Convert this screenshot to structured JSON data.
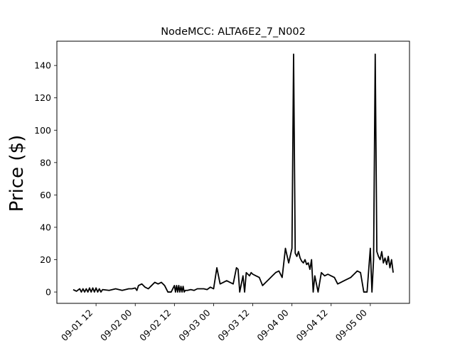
{
  "chart_data": {
    "type": "line",
    "title": "NodeMCC: ALTA6E2_7_N002",
    "xlabel": "",
    "ylabel": "Price ($)",
    "ylim": [
      -7,
      155
    ],
    "xlim": [
      "09-01 00:00",
      "09-05 12:00"
    ],
    "yticks": [
      0,
      20,
      40,
      60,
      80,
      100,
      120,
      140
    ],
    "xticks": [
      "09-01 12",
      "09-02 00",
      "09-02 12",
      "09-03 00",
      "09-03 12",
      "09-04 00",
      "09-04 12",
      "09-05 00"
    ],
    "grid": false,
    "line_color": "#000000",
    "series": [
      {
        "x": [
          "09-01 05:00",
          "09-01 06:00",
          "09-01 07:00",
          "09-01 07:30",
          "09-01 08:00",
          "09-01 08:30",
          "09-01 09:00",
          "09-01 09:30",
          "09-01 10:00",
          "09-01 10:30",
          "09-01 11:00",
          "09-01 11:30",
          "09-01 12:00",
          "09-01 12:30",
          "09-01 13:00",
          "09-01 13:30",
          "09-01 14:00",
          "09-01 16:00",
          "09-01 18:00",
          "09-01 20:00",
          "09-01 22:00",
          "09-01 23:00",
          "09-02 00:00",
          "09-02 00:30",
          "09-02 01:00",
          "09-02 02:00",
          "09-02 03:00",
          "09-02 04:00",
          "09-02 05:00",
          "09-02 06:00",
          "09-02 07:00",
          "09-02 08:00",
          "09-02 09:00",
          "09-02 10:00",
          "09-02 11:00",
          "09-02 12:00",
          "09-02 12:20",
          "09-02 12:40",
          "09-02 13:00",
          "09-02 13:20",
          "09-02 13:40",
          "09-02 14:00",
          "09-02 14:20",
          "09-02 14:40",
          "09-02 15:00",
          "09-02 15:20",
          "09-02 15:40",
          "09-02 16:00",
          "09-02 17:00",
          "09-02 18:00",
          "09-02 19:00",
          "09-02 20:00",
          "09-02 21:00",
          "09-02 22:00",
          "09-02 23:00",
          "09-03 00:00",
          "09-03 01:00",
          "09-03 02:00",
          "09-03 03:00",
          "09-03 04:00",
          "09-03 05:00",
          "09-03 06:00",
          "09-03 07:00",
          "09-03 07:30",
          "09-03 08:00",
          "09-03 09:00",
          "09-03 09:30",
          "09-03 10:00",
          "09-03 10:30",
          "09-03 11:00",
          "09-03 11:30",
          "09-03 12:00",
          "09-03 13:00",
          "09-03 14:00",
          "09-03 15:00",
          "09-03 16:00",
          "09-03 17:00",
          "09-03 18:00",
          "09-03 19:00",
          "09-03 20:00",
          "09-03 21:00",
          "09-03 22:00",
          "09-03 23:00",
          "09-04 00:00",
          "09-04 00:30",
          "09-04 01:00",
          "09-04 01:30",
          "09-04 02:00",
          "09-04 02:30",
          "09-04 03:00",
          "09-04 03:30",
          "09-04 04:00",
          "09-04 04:30",
          "09-04 05:00",
          "09-04 05:30",
          "09-04 06:00",
          "09-04 06:30",
          "09-04 07:00",
          "09-04 08:00",
          "09-04 09:00",
          "09-04 09:30",
          "09-04 10:00",
          "09-04 11:00",
          "09-04 12:00",
          "09-04 13:00",
          "09-04 14:00",
          "09-04 15:00",
          "09-04 16:00",
          "09-04 17:00",
          "09-04 18:00",
          "09-04 19:00",
          "09-04 20:00",
          "09-04 21:00",
          "09-04 22:00",
          "09-04 23:00",
          "09-05 00:00",
          "09-05 00:30",
          "09-05 01:00",
          "09-05 01:30",
          "09-05 02:00",
          "09-05 02:30",
          "09-05 03:00",
          "09-05 03:30",
          "09-05 04:00",
          "09-05 04:30",
          "09-05 05:00",
          "09-05 05:30",
          "09-05 06:00",
          "09-05 06:30",
          "09-05 07:00"
        ],
        "y": [
          1.5,
          0.5,
          2,
          0,
          2,
          0,
          2,
          0,
          2.5,
          0,
          2.5,
          0,
          2.5,
          0,
          2,
          0,
          1.5,
          1,
          2,
          1,
          2,
          2,
          2.5,
          1,
          4,
          5,
          3,
          2,
          4,
          6,
          5,
          6,
          4,
          0,
          0,
          4,
          0,
          4,
          0,
          4,
          0,
          3.5,
          0,
          3.5,
          0,
          1,
          1,
          1,
          1.5,
          1,
          2,
          2,
          2,
          1.5,
          3,
          2,
          15,
          5,
          6,
          7,
          6,
          5,
          15,
          14,
          0,
          10,
          0,
          12,
          11,
          10,
          12,
          11,
          10,
          9,
          4,
          6,
          8,
          10,
          12,
          13,
          9,
          27,
          18,
          27,
          147,
          24,
          22,
          25,
          21,
          19,
          18,
          20,
          17,
          18,
          14,
          20,
          0,
          10,
          0,
          12,
          11,
          10,
          11,
          10,
          9,
          5,
          6,
          7,
          8,
          9,
          11,
          13,
          12,
          0,
          0,
          27,
          0,
          20,
          147,
          25,
          22,
          20,
          25,
          18,
          21,
          17,
          22,
          15,
          20,
          12
        ]
      }
    ]
  }
}
